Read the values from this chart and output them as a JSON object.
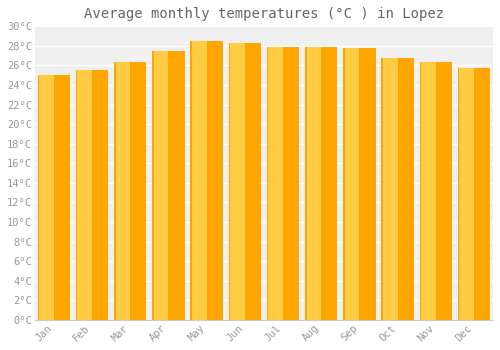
{
  "title": "Average monthly temperatures (°C ) in Lopez",
  "months": [
    "Jan",
    "Feb",
    "Mar",
    "Apr",
    "May",
    "Jun",
    "Jul",
    "Aug",
    "Sep",
    "Oct",
    "Nov",
    "Dec"
  ],
  "values": [
    25.0,
    25.5,
    26.3,
    27.5,
    28.5,
    28.3,
    27.9,
    27.9,
    27.8,
    26.8,
    26.4,
    25.7
  ],
  "bar_color_center": "#FFCC44",
  "bar_color_edge": "#FFA500",
  "background_color": "#ffffff",
  "plot_bg_color": "#f0f0f0",
  "grid_color": "#ffffff",
  "text_color": "#999999",
  "title_color": "#666666",
  "ylim": [
    0,
    30
  ],
  "ytick_step": 2,
  "title_fontsize": 10,
  "tick_fontsize": 7.5,
  "bar_width": 0.85
}
